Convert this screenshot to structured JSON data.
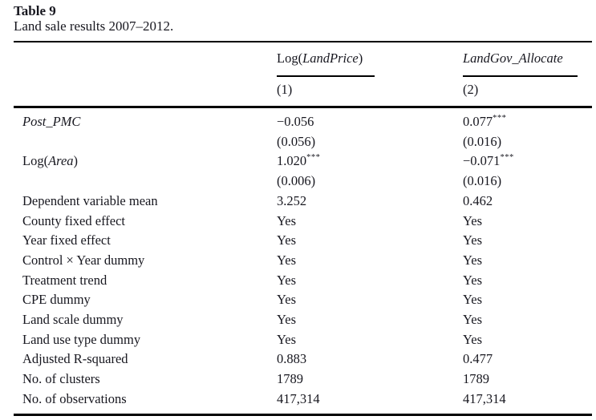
{
  "table": {
    "label": "Table 9",
    "caption": "Land sale results 2007–2012.",
    "col_headers": [
      {
        "pre": "Log(",
        "it": "LandPrice",
        "post": ")",
        "num": "(1)"
      },
      {
        "it": "LandGov_Allocate",
        "num": "(2)"
      }
    ],
    "rows": [
      {
        "label_it": "Post_PMC",
        "c1": "−0.056",
        "c2": "0.077",
        "c2s": "***"
      },
      {
        "c1": "(0.056)",
        "c2": "(0.016)"
      },
      {
        "label_pre": "Log(",
        "label_it": "Area",
        "label_post": ")",
        "c1": "1.020",
        "c1s": "***",
        "c2": "−0.071",
        "c2s": "***"
      },
      {
        "c1": "(0.006)",
        "c2": "(0.016)"
      },
      {
        "label_pre": "Dependent variable mean",
        "c1": "3.252",
        "c2": "0.462"
      },
      {
        "label_pre": "County fixed effect",
        "c1": "Yes",
        "c2": "Yes"
      },
      {
        "label_pre": "Year fixed effect",
        "c1": "Yes",
        "c2": "Yes"
      },
      {
        "label_pre": "Control × Year dummy",
        "c1": "Yes",
        "c2": "Yes"
      },
      {
        "label_pre": "Treatment trend",
        "c1": "Yes",
        "c2": "Yes"
      },
      {
        "label_pre": "CPE dummy",
        "c1": "Yes",
        "c2": "Yes"
      },
      {
        "label_pre": "Land scale dummy",
        "c1": "Yes",
        "c2": "Yes"
      },
      {
        "label_pre": "Land use type dummy",
        "c1": "Yes",
        "c2": "Yes"
      },
      {
        "label_pre": "Adjusted R-squared",
        "c1": "0.883",
        "c2": "0.477"
      },
      {
        "label_pre": "No. of clusters",
        "c1": "1789",
        "c2": "1789"
      },
      {
        "label_pre": "No. of observations",
        "c1": "417,314",
        "c2": "417,314"
      }
    ]
  }
}
